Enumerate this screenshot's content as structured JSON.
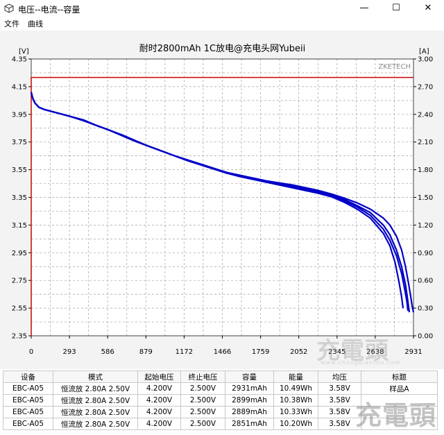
{
  "window": {
    "title": "电压--电流--容量",
    "min_glyph": "—",
    "max_glyph": "☐",
    "close_glyph": "✕"
  },
  "menu": [
    "文件",
    "曲线"
  ],
  "chart_data": {
    "type": "line",
    "title": "耐时2800mAh 1C放电@充电头网Yubeii",
    "watermark": "ZKETECH",
    "ylabel_left": "[V]",
    "ylabel_right": "[A]",
    "ylim_left": [
      2.35,
      4.35
    ],
    "ylim_right": [
      0.0,
      3.0
    ],
    "yticks_left": [
      "4.35",
      "4.15",
      "3.95",
      "3.75",
      "3.55",
      "3.35",
      "3.15",
      "2.95",
      "2.75",
      "2.55",
      "2.35"
    ],
    "yticks_right": [
      "3.00",
      "2.70",
      "2.40",
      "2.10",
      "1.80",
      "1.50",
      "1.20",
      "0.90",
      "0.60",
      "0.30",
      "0.00"
    ],
    "xlim": [
      0,
      2931
    ],
    "xticks": [
      "0",
      "293",
      "586",
      "879",
      "1172",
      "1466",
      "1759",
      "2052",
      "2345",
      "2638",
      "2931"
    ],
    "grid": true,
    "current_line": {
      "color": "#cc0000",
      "value_A": 2.8
    },
    "voltage_color": "#0000c8",
    "series": [
      {
        "name": "样品A",
        "x": [
          0,
          10,
          30,
          60,
          100,
          200,
          300,
          400,
          500,
          600,
          700,
          800,
          900,
          1000,
          1100,
          1200,
          1300,
          1400,
          1500,
          1600,
          1700,
          1800,
          1900,
          2000,
          2100,
          2200,
          2300,
          2400,
          2500,
          2600,
          2700,
          2750,
          2800,
          2840,
          2870,
          2895,
          2910,
          2920,
          2931
        ],
        "y": [
          4.11,
          4.07,
          4.03,
          4.0,
          3.985,
          3.96,
          3.935,
          3.91,
          3.87,
          3.835,
          3.8,
          3.76,
          3.72,
          3.685,
          3.65,
          3.62,
          3.59,
          3.56,
          3.53,
          3.51,
          3.49,
          3.47,
          3.455,
          3.44,
          3.42,
          3.4,
          3.375,
          3.345,
          3.31,
          3.265,
          3.2,
          3.15,
          3.07,
          2.97,
          2.85,
          2.72,
          2.63,
          2.57,
          2.52
        ]
      },
      {
        "name": "",
        "x": [
          0,
          10,
          30,
          60,
          100,
          200,
          300,
          400,
          500,
          600,
          700,
          800,
          900,
          1000,
          1100,
          1200,
          1300,
          1400,
          1500,
          1600,
          1700,
          1800,
          1900,
          2000,
          2100,
          2200,
          2300,
          2400,
          2500,
          2600,
          2700,
          2750,
          2800,
          2840,
          2870,
          2885,
          2899
        ],
        "y": [
          4.11,
          4.07,
          4.03,
          4.0,
          3.985,
          3.96,
          3.935,
          3.905,
          3.87,
          3.835,
          3.795,
          3.755,
          3.72,
          3.685,
          3.65,
          3.615,
          3.585,
          3.555,
          3.525,
          3.505,
          3.485,
          3.465,
          3.45,
          3.43,
          3.41,
          3.39,
          3.365,
          3.335,
          3.29,
          3.24,
          3.15,
          3.08,
          2.97,
          2.85,
          2.72,
          2.62,
          2.52
        ]
      },
      {
        "name": "",
        "x": [
          0,
          10,
          30,
          60,
          100,
          200,
          300,
          400,
          500,
          600,
          700,
          800,
          900,
          1000,
          1100,
          1200,
          1300,
          1400,
          1500,
          1600,
          1700,
          1800,
          1900,
          2000,
          2100,
          2200,
          2300,
          2400,
          2500,
          2600,
          2700,
          2750,
          2800,
          2840,
          2865,
          2880,
          2889
        ],
        "y": [
          4.11,
          4.07,
          4.03,
          4.0,
          3.985,
          3.96,
          3.935,
          3.905,
          3.87,
          3.835,
          3.795,
          3.755,
          3.72,
          3.685,
          3.65,
          3.615,
          3.585,
          3.555,
          3.525,
          3.505,
          3.485,
          3.465,
          3.445,
          3.425,
          3.405,
          3.385,
          3.36,
          3.325,
          3.28,
          3.22,
          3.12,
          3.04,
          2.93,
          2.8,
          2.68,
          2.6,
          2.53
        ]
      },
      {
        "name": "",
        "x": [
          0,
          10,
          30,
          60,
          100,
          200,
          300,
          400,
          500,
          600,
          700,
          800,
          900,
          1000,
          1100,
          1200,
          1300,
          1400,
          1500,
          1600,
          1700,
          1800,
          1900,
          2000,
          2100,
          2200,
          2300,
          2400,
          2500,
          2600,
          2700,
          2750,
          2790,
          2820,
          2840,
          2851
        ],
        "y": [
          4.11,
          4.07,
          4.03,
          4.0,
          3.985,
          3.96,
          3.935,
          3.905,
          3.87,
          3.835,
          3.795,
          3.755,
          3.72,
          3.685,
          3.65,
          3.615,
          3.585,
          3.555,
          3.525,
          3.5,
          3.48,
          3.46,
          3.44,
          3.42,
          3.4,
          3.38,
          3.355,
          3.315,
          3.265,
          3.2,
          3.09,
          3.0,
          2.88,
          2.74,
          2.63,
          2.55
        ]
      }
    ]
  },
  "table": {
    "headers": [
      "设备",
      "模式",
      "起始电压",
      "终止电压",
      "容量",
      "能量",
      "均压",
      "标题"
    ],
    "rows": [
      [
        "EBC-A05",
        "恒流放  2.80A  2.50V",
        "4.200V",
        "2.500V",
        "2931mAh",
        "10.49Wh",
        "3.58V",
        "样品A"
      ],
      [
        "EBC-A05",
        "恒流放  2.80A  2.50V",
        "4.200V",
        "2.500V",
        "2899mAh",
        "10.38Wh",
        "3.58V",
        ""
      ],
      [
        "EBC-A05",
        "恒流放  2.80A  2.50V",
        "4.200V",
        "2.500V",
        "2889mAh",
        "10.33Wh",
        "3.58V",
        ""
      ],
      [
        "EBC-A05",
        "恒流放  2.80A  2.50V",
        "4.200V",
        "2.500V",
        "2851mAh",
        "10.20Wh",
        "3.58V",
        ""
      ]
    ]
  },
  "watermarks": {
    "logo_big": "充電頭",
    "logo_url": "www.chongdiantou.com",
    "logo_small": "充電頭"
  },
  "colors": {
    "chart_bg": "#ffffff",
    "frame": "#404040",
    "grid": "#a0a0a0"
  }
}
